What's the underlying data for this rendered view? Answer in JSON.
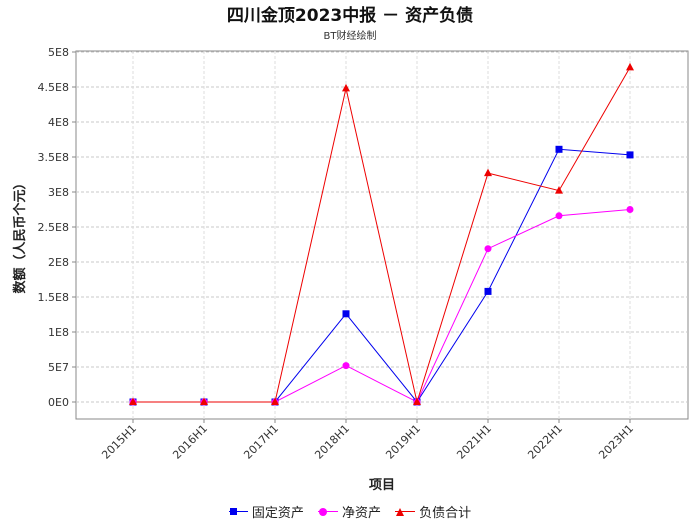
{
  "chart_data": {
    "type": "line",
    "title": "四川金顶2023中报 － 资产负债",
    "subtitle": "BT财经绘制",
    "xlabel": "项目",
    "ylabel": "数额（人民币个元）",
    "categories": [
      "2015H1",
      "2016H1",
      "2017H1",
      "2018H1",
      "2019H1",
      "2021H1",
      "2022H1",
      "2023H1"
    ],
    "ylim": [
      0,
      500000000
    ],
    "yticks": [
      "0E0",
      "5E7",
      "1E8",
      "1.5E8",
      "2E8",
      "2.5E8",
      "3E8",
      "3.5E8",
      "4E8",
      "4.5E8",
      "5E8"
    ],
    "grid": true,
    "legend_position": "bottom",
    "series": [
      {
        "name": "固定资产",
        "color": "#0000ee",
        "marker": "square",
        "values": [
          0,
          0,
          0,
          126000000,
          0,
          158000000,
          361000000,
          353000000
        ]
      },
      {
        "name": "净资产",
        "color": "#ff00ff",
        "marker": "circle",
        "values": [
          0,
          0,
          0,
          52000000,
          0,
          219000000,
          266000000,
          275000000
        ]
      },
      {
        "name": "负债合计",
        "color": "#ee0000",
        "marker": "triangle",
        "values": [
          0,
          0,
          0,
          448000000,
          0,
          327000000,
          302000000,
          478000000
        ]
      }
    ]
  }
}
